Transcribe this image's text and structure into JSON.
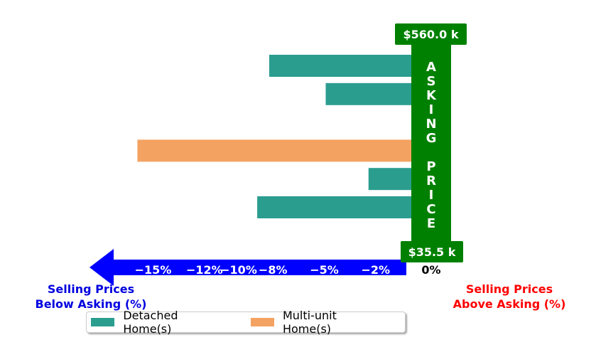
{
  "chart_data": {
    "type": "bar",
    "orientation": "horizontal",
    "series": [
      {
        "name": "Detached Home(s)",
        "color": "#2a9d8f"
      },
      {
        "name": "Multi-unit Home(s)",
        "color": "#f4a261"
      }
    ],
    "bars": [
      {
        "series": 0,
        "value": -8.3
      },
      {
        "series": 0,
        "value": -5.0
      },
      {
        "series": 0,
        "value": 0.2
      },
      {
        "series": 1,
        "value": -16.0
      },
      {
        "series": 0,
        "value": -2.5
      },
      {
        "series": 0,
        "value": -9.0
      },
      {
        "series": 0,
        "value": 0.4
      }
    ],
    "xlim": [
      -19,
      2.4
    ],
    "x_ticks": [
      {
        "value": -15,
        "label": "−15%"
      },
      {
        "value": -12,
        "label": "−12%"
      },
      {
        "value": -10,
        "label": "−10%"
      },
      {
        "value": -8,
        "label": "−8%"
      },
      {
        "value": -5,
        "label": "−5%"
      },
      {
        "value": -2,
        "label": "−2%"
      },
      {
        "value": 0,
        "label": "0%"
      }
    ],
    "asking_price_label": "A S K I N G   P R I C E",
    "asking_price_letters": [
      "A",
      "S",
      "K",
      "I",
      "N",
      "G",
      "",
      "P",
      "R",
      "I",
      "C",
      "E"
    ],
    "top_price_label": "$560.0 k",
    "bottom_price_label": "$35.5 k",
    "left_axis_label": [
      "Selling Prices",
      "Below Asking (%)"
    ],
    "right_axis_label": [
      "Selling Prices",
      "Above Asking (%)"
    ],
    "legend_placement": "bottom",
    "colors": {
      "arrow": "#0000ff",
      "asking_bar": "#008000",
      "left_text": "#0000e0",
      "right_text": "#ff0000"
    }
  }
}
